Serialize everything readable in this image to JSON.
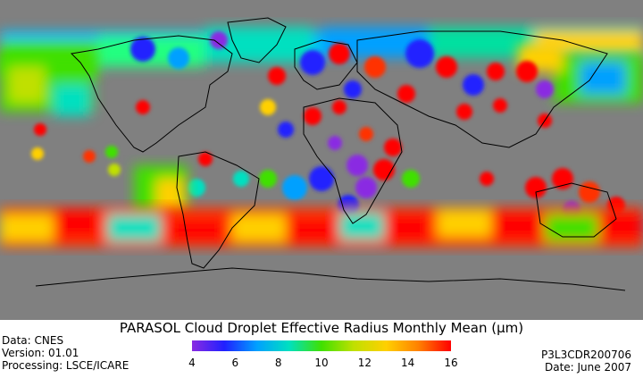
{
  "title": "PARASOL Cloud Droplet Effective Radius Monthly Mean (µm)",
  "colorbar": {
    "ticks": [
      "4",
      "6",
      "8",
      "10",
      "12",
      "14",
      "16"
    ],
    "min": 4,
    "max": 16,
    "colors": [
      "#8a2be2",
      "#2020ff",
      "#00a0ff",
      "#00e0c0",
      "#40e000",
      "#c0e000",
      "#ffd000",
      "#ff8000",
      "#ff0000"
    ]
  },
  "meta_left": [
    "Data: CNES",
    "Version: 01.01",
    "Processing: LSCE/ICARE"
  ],
  "meta_right": [
    "P3L3CDR200706",
    "Date: June 2007"
  ],
  "map": {
    "background": "#808080",
    "coastline_color": "#000000"
  }
}
